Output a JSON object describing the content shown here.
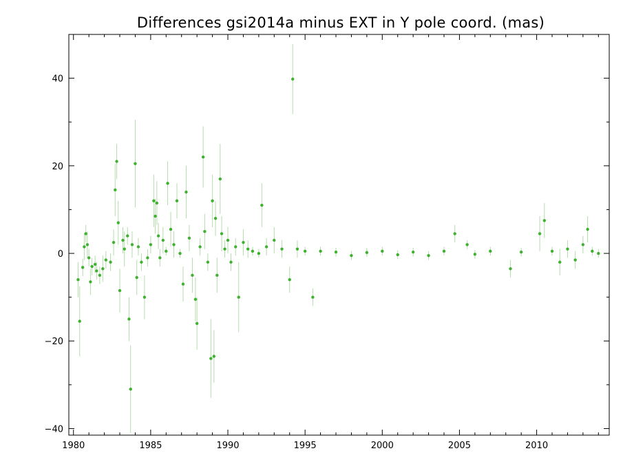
{
  "colors": {
    "point": "#40b030",
    "errorbar": "#b4dcac",
    "axis": "#000000",
    "background": "#ffffff"
  },
  "chart_data": {
    "type": "scatter",
    "title": "Differences gsi2014a minus EXT in Y pole coord. (mas)",
    "xlabel": "",
    "ylabel": "",
    "xlim": [
      1979.7,
      2014.7
    ],
    "ylim": [
      -41.5,
      50
    ],
    "xticks": [
      1980,
      1985,
      1990,
      1995,
      2000,
      2005,
      2010
    ],
    "yticks": [
      -40,
      -20,
      0,
      20,
      40
    ],
    "ytick_labels": [
      "−40",
      "−20",
      "0",
      "20",
      "40"
    ],
    "grid": false,
    "error_bars": true,
    "series": [
      {
        "points": [
          [
            1980.3,
            -6.0,
            4
          ],
          [
            1980.4,
            -15.5,
            8
          ],
          [
            1980.6,
            -3.2,
            2
          ],
          [
            1980.7,
            1.5,
            3
          ],
          [
            1980.8,
            4.5,
            2
          ],
          [
            1980.9,
            2.0,
            3
          ],
          [
            1981.0,
            -1.0,
            2
          ],
          [
            1981.1,
            -6.5,
            3
          ],
          [
            1981.2,
            -3.0,
            2
          ],
          [
            1981.4,
            -2.5,
            2
          ],
          [
            1981.5,
            -4.0,
            2
          ],
          [
            1981.7,
            -5.0,
            2
          ],
          [
            1981.9,
            -3.5,
            3
          ],
          [
            1982.1,
            -1.5,
            2
          ],
          [
            1982.4,
            -2.0,
            2
          ],
          [
            1982.6,
            2.5,
            3
          ],
          [
            1982.7,
            14.5,
            6
          ],
          [
            1982.8,
            21.0,
            4
          ],
          [
            1982.9,
            7.0,
            5
          ],
          [
            1983.0,
            -8.5,
            5
          ],
          [
            1983.2,
            3.0,
            3
          ],
          [
            1983.3,
            1.0,
            4
          ],
          [
            1983.5,
            4.0,
            2
          ],
          [
            1983.6,
            -15.0,
            5
          ],
          [
            1983.7,
            -31.0,
            10
          ],
          [
            1983.8,
            2.0,
            3
          ],
          [
            1984.0,
            20.5,
            10
          ],
          [
            1984.1,
            -5.5,
            4
          ],
          [
            1984.2,
            1.5,
            2
          ],
          [
            1984.4,
            -2.0,
            2
          ],
          [
            1984.6,
            -10.0,
            5
          ],
          [
            1984.8,
            -1.0,
            2
          ],
          [
            1985.0,
            2.0,
            2
          ],
          [
            1985.2,
            12.0,
            6
          ],
          [
            1985.4,
            11.5,
            5
          ],
          [
            1985.3,
            8.5,
            4
          ],
          [
            1985.5,
            4.0,
            3
          ],
          [
            1985.6,
            -1.0,
            2
          ],
          [
            1985.8,
            3.0,
            3
          ],
          [
            1986.0,
            0.5,
            1
          ],
          [
            1986.1,
            16.0,
            5
          ],
          [
            1986.3,
            5.5,
            4
          ],
          [
            1986.5,
            2.0,
            3
          ],
          [
            1986.7,
            12.0,
            4
          ],
          [
            1986.9,
            0.0,
            1
          ],
          [
            1987.1,
            -7.0,
            4
          ],
          [
            1987.3,
            14.0,
            6
          ],
          [
            1987.5,
            3.5,
            3
          ],
          [
            1987.7,
            -5.0,
            4
          ],
          [
            1987.9,
            -10.5,
            5
          ],
          [
            1988.0,
            -16.0,
            6
          ],
          [
            1988.2,
            1.5,
            2
          ],
          [
            1988.4,
            22.0,
            7
          ],
          [
            1988.5,
            5.0,
            4
          ],
          [
            1988.7,
            -2.0,
            2
          ],
          [
            1988.9,
            -24.0,
            9
          ],
          [
            1989.0,
            12.0,
            6
          ],
          [
            1989.1,
            -23.5,
            6
          ],
          [
            1989.2,
            8.0,
            4
          ],
          [
            1989.3,
            -5.0,
            4
          ],
          [
            1989.5,
            17.0,
            8
          ],
          [
            1989.6,
            4.5,
            4
          ],
          [
            1989.8,
            1.0,
            2
          ],
          [
            1990.0,
            3.0,
            3
          ],
          [
            1990.2,
            -2.0,
            2
          ],
          [
            1990.5,
            1.5,
            2
          ],
          [
            1990.7,
            -10.0,
            8
          ],
          [
            1991.0,
            2.5,
            3
          ],
          [
            1991.3,
            1.0,
            2
          ],
          [
            1991.6,
            0.5,
            1
          ],
          [
            1992.0,
            0.0,
            1
          ],
          [
            1992.2,
            11.0,
            5
          ],
          [
            1992.5,
            1.5,
            2
          ],
          [
            1993.0,
            3.0,
            3
          ],
          [
            1993.5,
            1.0,
            2
          ],
          [
            1994.0,
            -6.0,
            3
          ],
          [
            1994.2,
            39.8,
            8
          ],
          [
            1994.5,
            1.0,
            2
          ],
          [
            1995.0,
            0.5,
            1
          ],
          [
            1995.5,
            -10.0,
            2
          ],
          [
            1996.0,
            0.5,
            1
          ],
          [
            1997.0,
            0.3,
            1
          ],
          [
            1998.0,
            -0.5,
            1
          ],
          [
            1999.0,
            0.2,
            1
          ],
          [
            2000.0,
            0.5,
            1
          ],
          [
            2001.0,
            -0.3,
            1
          ],
          [
            2002.0,
            0.3,
            1
          ],
          [
            2003.0,
            -0.5,
            1
          ],
          [
            2004.0,
            0.5,
            1
          ],
          [
            2004.7,
            4.5,
            2
          ],
          [
            2005.5,
            2.0,
            1
          ],
          [
            2006.0,
            -0.2,
            1
          ],
          [
            2007.0,
            0.5,
            1
          ],
          [
            2008.3,
            -3.5,
            2
          ],
          [
            2009.0,
            0.3,
            1
          ],
          [
            2010.2,
            4.5,
            4
          ],
          [
            2010.5,
            7.5,
            4
          ],
          [
            2011.0,
            0.5,
            1
          ],
          [
            2011.5,
            -2.0,
            3
          ],
          [
            2012.0,
            1.0,
            2
          ],
          [
            2012.5,
            -1.5,
            2
          ],
          [
            2013.0,
            2.0,
            2
          ],
          [
            2013.3,
            5.5,
            3
          ],
          [
            2013.6,
            0.5,
            1
          ],
          [
            2014.0,
            0.0,
            1
          ]
        ]
      }
    ]
  }
}
